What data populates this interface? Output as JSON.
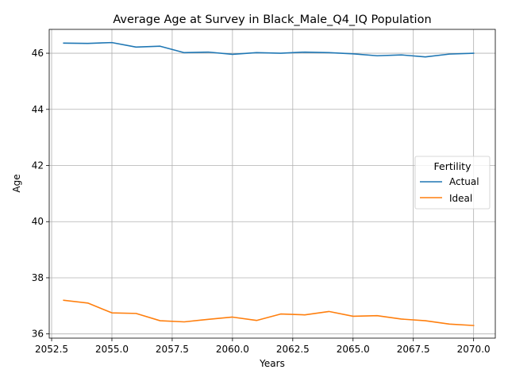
{
  "chart_data": {
    "type": "line",
    "title": "Average Age at Survey in Black_Male_Q4_IQ Population",
    "xlabel": "Years",
    "ylabel": "Age",
    "xlim": [
      2052.4,
      2070.9
    ],
    "ylim": [
      35.85,
      46.85
    ],
    "xticks": [
      2052.5,
      2055.0,
      2057.5,
      2060.0,
      2062.5,
      2065.0,
      2067.5,
      2070.0
    ],
    "xtick_labels": [
      "2052.5",
      "2055.0",
      "2057.5",
      "2060.0",
      "2062.5",
      "2065.0",
      "2067.5",
      "2070.0"
    ],
    "yticks": [
      36,
      38,
      40,
      42,
      44,
      46
    ],
    "ytick_labels": [
      "36",
      "38",
      "40",
      "42",
      "44",
      "46"
    ],
    "grid": true,
    "legend": {
      "title": "Fertility",
      "placement": "center-right"
    },
    "x": [
      2053,
      2054,
      2055,
      2056,
      2057,
      2058,
      2059,
      2060,
      2061,
      2062,
      2063,
      2064,
      2065,
      2066,
      2067,
      2068,
      2069,
      2070
    ],
    "series": [
      {
        "name": "Actual",
        "color": "#1f77b4",
        "values": [
          46.36,
          46.35,
          46.38,
          46.22,
          46.25,
          46.02,
          46.04,
          45.96,
          46.02,
          46.0,
          46.04,
          46.02,
          45.98,
          45.91,
          45.94,
          45.87,
          45.97,
          46.0
        ]
      },
      {
        "name": "Ideal",
        "color": "#ff7f0e",
        "values": [
          37.2,
          37.1,
          36.75,
          36.73,
          36.47,
          36.43,
          36.52,
          36.6,
          36.48,
          36.71,
          36.68,
          36.8,
          36.63,
          36.65,
          36.53,
          36.47,
          36.35,
          36.3
        ]
      }
    ]
  }
}
